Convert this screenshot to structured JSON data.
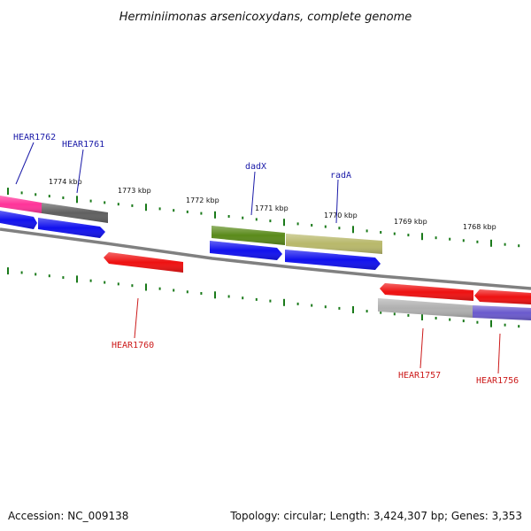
{
  "title": "Herminiimonas arsenicoxydans, complete genome",
  "accession": "Accession: NC_009138",
  "topology": "Topology: circular; Length: 3,424,307 bp; Genes: 3,353",
  "colors": {
    "background": "#ffffff",
    "backbone": "#808080",
    "tick": "#1a7a1a",
    "label_forward": "#1a1aa8",
    "label_reverse": "#cc1a1a"
  },
  "ruler": {
    "ticks": [
      "1774 kbp",
      "1773 kbp",
      "1772 kbp",
      "1771 kbp",
      "1770 kbp",
      "1769 kbp",
      "1768 kbp"
    ]
  },
  "genes": [
    {
      "id": "g-pink",
      "color": "#ff3399",
      "strand": "forward-cog",
      "label": ""
    },
    {
      "id": "g-grey1",
      "color": "#606060",
      "strand": "forward-cog",
      "label": ""
    },
    {
      "id": "g-olive",
      "color": "#5a8a1a",
      "strand": "forward-cog",
      "label": ""
    },
    {
      "id": "g-khaki",
      "color": "#c0c070",
      "strand": "forward-cog",
      "label": ""
    },
    {
      "id": "g-blue1",
      "color": "#1111ee",
      "strand": "forward",
      "label": ""
    },
    {
      "id": "g-blue2",
      "color": "#1111ee",
      "strand": "forward",
      "label": ""
    },
    {
      "id": "g-blue3",
      "color": "#1111ee",
      "strand": "forward",
      "label": ""
    },
    {
      "id": "g-blue4",
      "color": "#1111ee",
      "strand": "forward",
      "label": ""
    },
    {
      "id": "g-red1",
      "color": "#ee1111",
      "strand": "reverse",
      "label": ""
    },
    {
      "id": "g-red2",
      "color": "#ee1111",
      "strand": "reverse",
      "label": ""
    },
    {
      "id": "g-red3",
      "color": "#ee1111",
      "strand": "reverse",
      "label": ""
    },
    {
      "id": "g-grey2",
      "color": "#b0b0b0",
      "strand": "reverse-cog",
      "label": ""
    },
    {
      "id": "g-purple",
      "color": "#6a5acd",
      "strand": "reverse-cog",
      "label": ""
    }
  ],
  "labels": {
    "hear1762": "HEAR1762",
    "hear1761": "HEAR1761",
    "dadx": "dadX",
    "rada": "radA",
    "hear1760": "HEAR1760",
    "hear1757": "HEAR1757",
    "hear1756": "HEAR1756"
  }
}
